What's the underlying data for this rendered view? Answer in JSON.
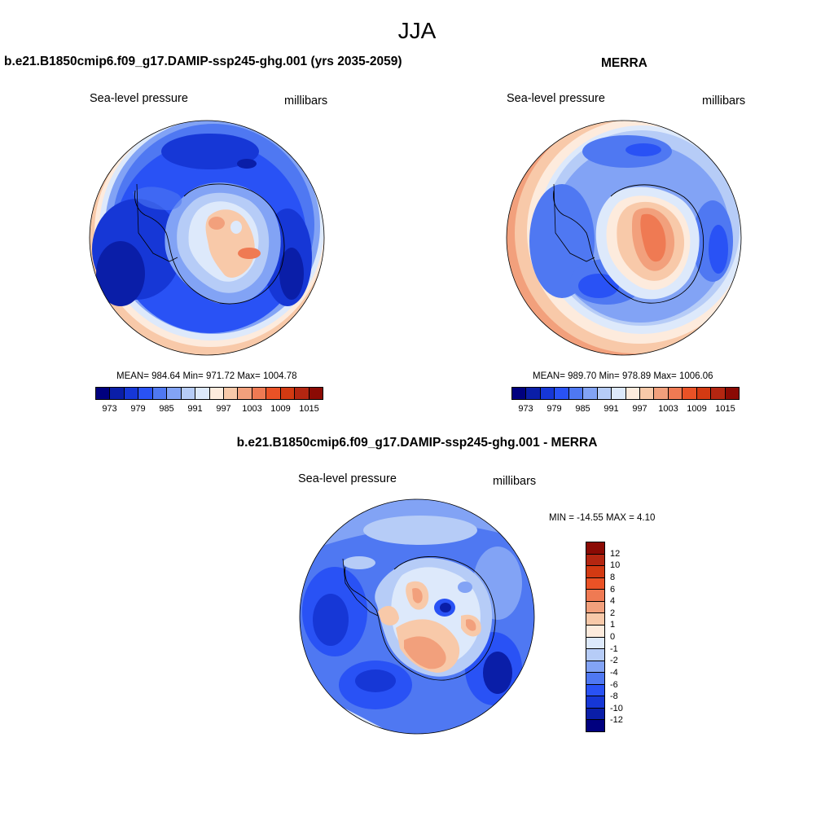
{
  "title": "JJA",
  "panels": {
    "model": {
      "title": "b.e21.B1850cmip6.f09_g17.DAMIP-ssp245-ghg.001 (yrs 2035-2059)",
      "left_label": "Sea-level pressure",
      "right_label": "millibars",
      "stats": "MEAN= 984.64  Min= 971.72  Max= 1004.78"
    },
    "obs": {
      "title": "MERRA",
      "left_label": "Sea-level pressure",
      "right_label": "millibars",
      "stats": "MEAN= 989.70  Min= 978.89  Max= 1006.06"
    },
    "diff": {
      "title": "b.e21.B1850cmip6.f09_g17.DAMIP-ssp245-ghg.001 - MERRA",
      "left_label": "Sea-level pressure",
      "right_label": "millibars",
      "stats": "MIN = -14.55 MAX =   4.10"
    }
  },
  "abs_colorbar": {
    "colors": [
      "#00007f",
      "#0a1ea8",
      "#1637d6",
      "#2952f5",
      "#4f78f2",
      "#82a3f5",
      "#b6ccf7",
      "#dde9fb",
      "#fdebdd",
      "#f8c9a9",
      "#f2a07c",
      "#ef7a53",
      "#ea5226",
      "#d33a12",
      "#b42611",
      "#8b0a04"
    ],
    "tick_labels": [
      "973",
      "979",
      "985",
      "991",
      "997",
      "1003",
      "1009",
      "1015"
    ]
  },
  "diff_colorbar": {
    "colors": [
      "#8b0a04",
      "#b42611",
      "#d33a12",
      "#ea5226",
      "#ef7a53",
      "#f2a07c",
      "#f8c9a9",
      "#fdebdd",
      "#dde9fb",
      "#b6ccf7",
      "#82a3f5",
      "#4f78f2",
      "#2952f5",
      "#1637d6",
      "#0a1ea8",
      "#00007f"
    ],
    "tick_labels": [
      "12",
      "10",
      "8",
      "6",
      "4",
      "2",
      "1",
      "0",
      "-1",
      "-2",
      "-4",
      "-6",
      "-8",
      "-10",
      "-12"
    ]
  },
  "colors": {
    "deep_blue": "#0a1ea8",
    "mid_blue": "#2952f5",
    "light_blue": "#82a3f5",
    "pale_blue": "#dde9fb",
    "pale_red": "#fdebdd",
    "salmon": "#f2a07c",
    "orange_red": "#ef7a53"
  }
}
